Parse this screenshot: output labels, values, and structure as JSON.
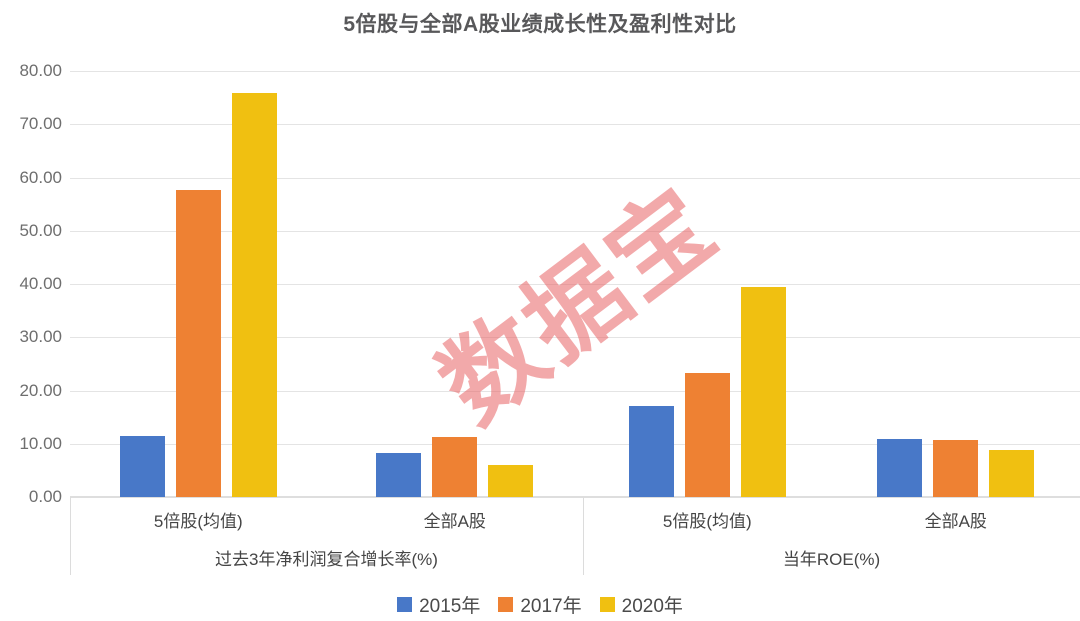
{
  "title": "5倍股与全部A股业绩成长性及盈利性对比",
  "watermark": {
    "text": "数据宝",
    "color": "#E76365"
  },
  "chart_data": {
    "type": "bar",
    "title": "5倍股与全部A股业绩成长性及盈利性对比",
    "groups": [
      {
        "label": "过去3年净利润复合增长率(%)",
        "categories": [
          "5倍股(均值)",
          "全部A股"
        ]
      },
      {
        "label": "当年ROE(%)",
        "categories": [
          "5倍股(均值)",
          "全部A股"
        ]
      }
    ],
    "cluster_labels": [
      "5倍股(均值)",
      "全部A股",
      "5倍股(均值)",
      "全部A股"
    ],
    "series": [
      {
        "name": "2015年",
        "color": "#4878C8",
        "values": [
          11.5,
          8.2,
          17.1,
          10.9
        ]
      },
      {
        "name": "2017年",
        "color": "#EE8133",
        "values": [
          57.6,
          11.2,
          23.3,
          10.7
        ]
      },
      {
        "name": "2020年",
        "color": "#F0C011",
        "values": [
          75.8,
          6.1,
          39.5,
          8.9
        ]
      }
    ],
    "ylim": [
      0,
      80
    ],
    "ytick_step": 10,
    "ytick_labels": [
      "0.00",
      "10.00",
      "20.00",
      "30.00",
      "40.00",
      "50.00",
      "60.00",
      "70.00",
      "80.00"
    ],
    "grid": "horizontal",
    "legend_position": "bottom",
    "legend": [
      "2015年",
      "2017年",
      "2020年"
    ]
  }
}
